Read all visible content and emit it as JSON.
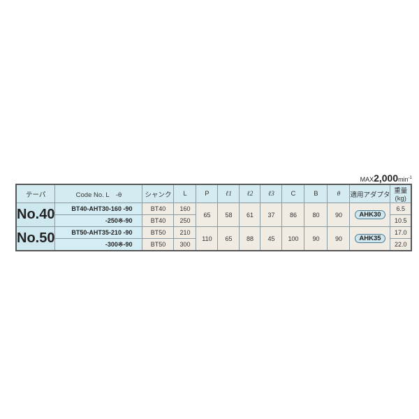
{
  "max_speed": {
    "prefix": "MAX",
    "value": "2,000",
    "unit": "min",
    "sup": "-1"
  },
  "headers": [
    "テーパ",
    "Code No. L　-θ",
    "シャンク",
    "L",
    "P",
    "ℓ1",
    "ℓ2",
    "ℓ3",
    "C",
    "B",
    "θ",
    "適用アダプタ",
    "重量(kg)"
  ],
  "groups": [
    {
      "taper": "No.40",
      "P": "65",
      "l1": "58",
      "l2": "61",
      "l3": "37",
      "C": "86",
      "B": "80",
      "theta": "90",
      "adapter": "AHK30",
      "rows": [
        {
          "code": "BT40-AHT30-160 -90",
          "shank": "BT40",
          "L": "160",
          "weight": "6.5"
        },
        {
          "code": "-250※-90",
          "shank": "BT40",
          "L": "250",
          "weight": "10.5"
        }
      ]
    },
    {
      "taper": "No.50",
      "P": "110",
      "l1": "65",
      "l2": "88",
      "l3": "45",
      "C": "100",
      "B": "90",
      "theta": "90",
      "adapter": "AHK35",
      "rows": [
        {
          "code": "BT50-AHT35-210 -90",
          "shank": "BT50",
          "L": "210",
          "weight": "17.0"
        },
        {
          "code": "-300※-90",
          "shank": "BT50",
          "L": "300",
          "weight": "22.0"
        }
      ]
    }
  ]
}
